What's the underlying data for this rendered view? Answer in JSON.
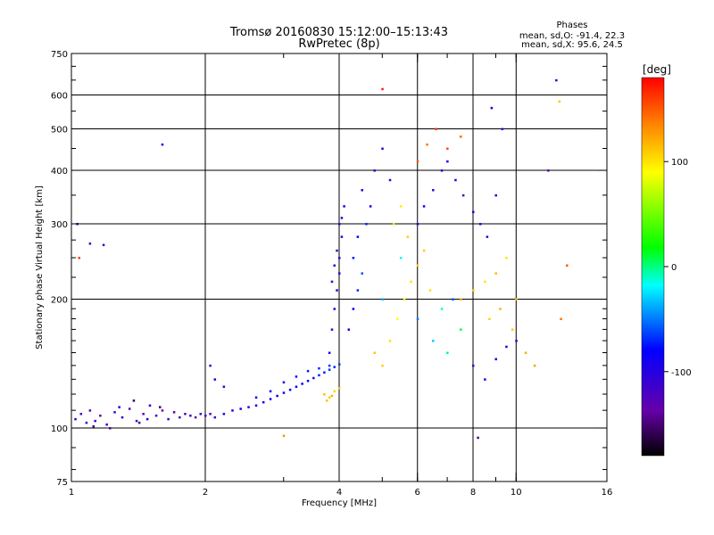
{
  "chart_data": {
    "type": "scatter",
    "title": "Tromsø 20160830 15:12:00–15:13:43",
    "subtitle": "RwPretec (8p)",
    "legend": {
      "heading": "Phases",
      "line1": "mean, sd,O: -91.4, 22.3",
      "line2": "mean, sd,X:  95.6, 24.5"
    },
    "xlabel": "Frequency [MHz]",
    "ylabel": "Stationary phase Virtual Height [km]",
    "x_scale": "log",
    "y_scale": "log",
    "xlim": [
      1,
      16
    ],
    "ylim": [
      75,
      750
    ],
    "x_ticks": [
      1,
      2,
      4,
      6,
      8,
      10,
      16
    ],
    "x_tick_labels": [
      "1",
      "2",
      "4",
      "6",
      "8",
      "10",
      "16"
    ],
    "y_ticks": [
      75,
      100,
      200,
      300,
      400,
      500,
      600,
      750
    ],
    "y_tick_labels": [
      "75",
      "100",
      "200",
      "300",
      "400",
      "500",
      "600",
      "750"
    ],
    "x_gridlines": [
      2,
      4,
      6,
      8,
      10
    ],
    "y_gridlines": [
      100,
      200,
      300,
      400,
      500,
      600
    ],
    "grid": true,
    "colorbar": {
      "label": "[deg]",
      "range": [
        -180,
        180
      ],
      "ticks": [
        100,
        0,
        -100
      ],
      "tick_labels": [
        "100",
        "0",
        "-100"
      ],
      "colors": [
        "#ff0000",
        "#ff8000",
        "#ffff00",
        "#00ff00",
        "#00ffff",
        "#0000ff",
        "#6600aa",
        "#000000"
      ]
    },
    "series": [
      {
        "points": [
          [
            1.02,
            105,
            -110
          ],
          [
            1.05,
            108,
            -120
          ],
          [
            1.08,
            103,
            -100
          ],
          [
            1.1,
            110,
            -130
          ],
          [
            1.13,
            104,
            -115
          ],
          [
            1.16,
            107,
            -140
          ],
          [
            1.2,
            102,
            -105
          ],
          [
            1.25,
            109,
            -120
          ],
          [
            1.3,
            106,
            -95
          ],
          [
            1.35,
            111,
            -130
          ],
          [
            1.4,
            104,
            -110
          ],
          [
            1.45,
            108,
            -125
          ],
          [
            1.5,
            113,
            -100
          ],
          [
            1.55,
            107,
            -118
          ],
          [
            1.6,
            110,
            -135
          ],
          [
            1.65,
            105,
            -112
          ],
          [
            1.7,
            109,
            -124
          ],
          [
            1.75,
            106,
            -108
          ],
          [
            1.8,
            108,
            -120
          ],
          [
            1.85,
            107,
            -115
          ],
          [
            1.9,
            106,
            -130
          ],
          [
            1.95,
            108,
            -110
          ],
          [
            2.0,
            107,
            -118
          ],
          [
            2.05,
            108,
            -125
          ],
          [
            2.1,
            106,
            -105
          ],
          [
            1.12,
            101,
            -150
          ],
          [
            1.22,
            100,
            -145
          ],
          [
            1.38,
            116,
            -160
          ],
          [
            1.42,
            103,
            -150
          ],
          [
            1.58,
            112,
            -155
          ],
          [
            1.28,
            112,
            -90
          ],
          [
            1.48,
            105,
            -85
          ],
          [
            2.2,
            108,
            -95
          ],
          [
            2.3,
            110,
            -100
          ],
          [
            2.4,
            111,
            -90
          ],
          [
            2.5,
            112,
            -95
          ],
          [
            2.6,
            113,
            -92
          ],
          [
            2.7,
            115,
            -88
          ],
          [
            2.8,
            117,
            -90
          ],
          [
            2.9,
            119,
            -85
          ],
          [
            3.0,
            121,
            -88
          ],
          [
            3.1,
            123,
            -80
          ],
          [
            3.2,
            125,
            -82
          ],
          [
            3.3,
            127,
            -78
          ],
          [
            3.4,
            129,
            -80
          ],
          [
            3.5,
            131,
            -75
          ],
          [
            3.6,
            133,
            -70
          ],
          [
            3.7,
            135,
            -72
          ],
          [
            3.8,
            137,
            -68
          ],
          [
            3.9,
            139,
            -70
          ],
          [
            4.0,
            141,
            -65
          ],
          [
            2.6,
            118,
            -85
          ],
          [
            2.8,
            122,
            -82
          ],
          [
            3.0,
            128,
            -78
          ],
          [
            3.2,
            132,
            -76
          ],
          [
            3.4,
            136,
            -72
          ],
          [
            3.6,
            138,
            -70
          ],
          [
            3.8,
            140,
            -66
          ],
          [
            3.7,
            120,
            115
          ],
          [
            3.8,
            118,
            110
          ],
          [
            3.9,
            122,
            105
          ],
          [
            4.0,
            124,
            108
          ],
          [
            3.75,
            116,
            112
          ],
          [
            3.85,
            119,
            118
          ],
          [
            3.8,
            150,
            -100
          ],
          [
            3.85,
            170,
            -110
          ],
          [
            3.9,
            190,
            -100
          ],
          [
            3.95,
            210,
            -95
          ],
          [
            4.0,
            230,
            -105
          ],
          [
            4.0,
            250,
            -100
          ],
          [
            4.05,
            280,
            -110
          ],
          [
            4.05,
            310,
            -100
          ],
          [
            4.1,
            330,
            -95
          ],
          [
            4.0,
            300,
            -115
          ],
          [
            3.95,
            260,
            -120
          ],
          [
            3.9,
            240,
            -100
          ],
          [
            3.85,
            220,
            -110
          ],
          [
            4.2,
            170,
            -90
          ],
          [
            4.3,
            190,
            -80
          ],
          [
            4.4,
            210,
            -70
          ],
          [
            4.5,
            230,
            -60
          ],
          [
            4.3,
            250,
            -75
          ],
          [
            4.4,
            280,
            -85
          ],
          [
            4.6,
            300,
            -70
          ],
          [
            4.7,
            330,
            -95
          ],
          [
            4.5,
            360,
            -100
          ],
          [
            4.8,
            400,
            -105
          ],
          [
            5.0,
            450,
            -110
          ],
          [
            5.2,
            380,
            -100
          ],
          [
            4.8,
            150,
            110
          ],
          [
            5.0,
            140,
            105
          ],
          [
            5.2,
            160,
            100
          ],
          [
            5.4,
            180,
            90
          ],
          [
            5.6,
            200,
            95
          ],
          [
            5.8,
            220,
            100
          ],
          [
            6.0,
            240,
            105
          ],
          [
            6.2,
            260,
            110
          ],
          [
            5.3,
            300,
            100
          ],
          [
            5.5,
            330,
            95
          ],
          [
            5.7,
            280,
            108
          ],
          [
            6.4,
            210,
            102
          ],
          [
            5.0,
            200,
            -40
          ],
          [
            5.5,
            250,
            -20
          ],
          [
            6.0,
            180,
            -50
          ],
          [
            6.5,
            160,
            -30
          ],
          [
            7.0,
            150,
            0
          ],
          [
            7.5,
            170,
            10
          ],
          [
            6.8,
            190,
            -10
          ],
          [
            7.2,
            200,
            -60
          ],
          [
            6.0,
            300,
            -100
          ],
          [
            6.2,
            330,
            -90
          ],
          [
            6.5,
            360,
            -110
          ],
          [
            6.8,
            400,
            -95
          ],
          [
            7.0,
            420,
            -105
          ],
          [
            7.3,
            380,
            -100
          ],
          [
            7.6,
            350,
            -115
          ],
          [
            8.0,
            320,
            -95
          ],
          [
            8.3,
            300,
            -100
          ],
          [
            8.6,
            280,
            -110
          ],
          [
            9.0,
            350,
            -90
          ],
          [
            6.0,
            420,
            150
          ],
          [
            6.3,
            460,
            140
          ],
          [
            6.6,
            500,
            160
          ],
          [
            7.0,
            450,
            155
          ],
          [
            7.5,
            480,
            145
          ],
          [
            5.0,
            620,
            170
          ],
          [
            12.5,
            580,
            110
          ],
          [
            13.0,
            240,
            150
          ],
          [
            12.6,
            180,
            140
          ],
          [
            7.5,
            200,
            120
          ],
          [
            8.0,
            210,
            110
          ],
          [
            8.5,
            220,
            100
          ],
          [
            9.0,
            230,
            115
          ],
          [
            8.7,
            180,
            105
          ],
          [
            9.2,
            190,
            118
          ],
          [
            9.5,
            250,
            100
          ],
          [
            10.0,
            200,
            110
          ],
          [
            10.5,
            150,
            120
          ],
          [
            11.0,
            140,
            125
          ],
          [
            9.8,
            170,
            108
          ],
          [
            8.0,
            140,
            -110
          ],
          [
            8.5,
            130,
            -100
          ],
          [
            9.0,
            145,
            -90
          ],
          [
            9.5,
            155,
            -95
          ],
          [
            10.0,
            160,
            -100
          ],
          [
            8.2,
            95,
            -150
          ],
          [
            8.8,
            560,
            -80
          ],
          [
            9.3,
            500,
            -100
          ],
          [
            12.3,
            650,
            -110
          ],
          [
            11.8,
            400,
            -140
          ],
          [
            1.03,
            300,
            -120
          ],
          [
            1.1,
            270,
            -110
          ],
          [
            1.18,
            268,
            -115
          ],
          [
            1.04,
            250,
            160
          ],
          [
            1.6,
            460,
            -100
          ],
          [
            2.05,
            140,
            -110
          ],
          [
            2.1,
            130,
            -100
          ],
          [
            2.2,
            125,
            -105
          ],
          [
            3.0,
            96,
            130
          ]
        ]
      }
    ]
  }
}
